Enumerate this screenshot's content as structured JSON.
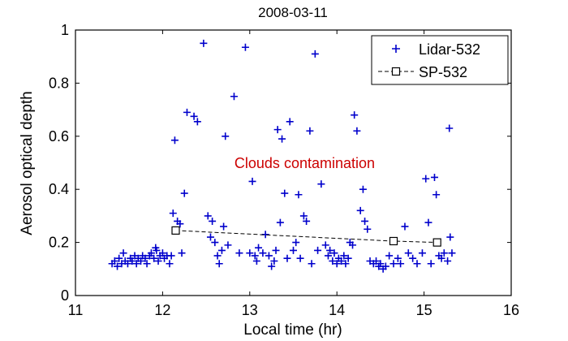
{
  "chart_data": {
    "type": "scatter",
    "title": "2008-03-11",
    "xlabel": "Local time (hr)",
    "ylabel": "Aerosol optical depth",
    "xlim": [
      11,
      16
    ],
    "ylim": [
      0,
      1
    ],
    "xticks": [
      "11",
      "12",
      "13",
      "14",
      "15",
      "16"
    ],
    "yticks": [
      "0",
      "0.2",
      "0.4",
      "0.6",
      "0.8",
      "1"
    ],
    "grid": false,
    "legend_position": "top-right",
    "annotation": {
      "text": "Clouds contamination",
      "x": 13.63,
      "y": 0.48,
      "color": "#cc0000"
    },
    "series": [
      {
        "name": "Lidar-532",
        "marker": "plus",
        "color": "#0000cc",
        "points": [
          [
            11.42,
            0.12
          ],
          [
            11.45,
            0.13
          ],
          [
            11.48,
            0.11
          ],
          [
            11.5,
            0.14
          ],
          [
            11.53,
            0.12
          ],
          [
            11.55,
            0.16
          ],
          [
            11.57,
            0.13
          ],
          [
            11.6,
            0.12
          ],
          [
            11.63,
            0.14
          ],
          [
            11.65,
            0.13
          ],
          [
            11.68,
            0.15
          ],
          [
            11.7,
            0.12
          ],
          [
            11.72,
            0.14
          ],
          [
            11.75,
            0.13
          ],
          [
            11.77,
            0.15
          ],
          [
            11.8,
            0.14
          ],
          [
            11.82,
            0.12
          ],
          [
            11.85,
            0.15
          ],
          [
            11.87,
            0.16
          ],
          [
            11.9,
            0.14
          ],
          [
            11.92,
            0.18
          ],
          [
            11.93,
            0.17
          ],
          [
            11.95,
            0.13
          ],
          [
            11.97,
            0.15
          ],
          [
            12.0,
            0.16
          ],
          [
            12.02,
            0.14
          ],
          [
            12.05,
            0.15
          ],
          [
            12.08,
            0.12
          ],
          [
            12.1,
            0.15
          ],
          [
            12.12,
            0.31
          ],
          [
            12.14,
            0.585
          ],
          [
            12.17,
            0.28
          ],
          [
            12.2,
            0.27
          ],
          [
            12.22,
            0.16
          ],
          [
            12.25,
            0.385
          ],
          [
            12.28,
            0.69
          ],
          [
            12.36,
            0.675
          ],
          [
            12.4,
            0.655
          ],
          [
            12.47,
            0.95
          ],
          [
            12.52,
            0.3
          ],
          [
            12.55,
            0.22
          ],
          [
            12.57,
            0.28
          ],
          [
            12.6,
            0.2
          ],
          [
            12.63,
            0.15
          ],
          [
            12.65,
            0.12
          ],
          [
            12.68,
            0.17
          ],
          [
            12.7,
            0.26
          ],
          [
            12.72,
            0.6
          ],
          [
            12.75,
            0.19
          ],
          [
            12.82,
            0.75
          ],
          [
            12.88,
            0.16
          ],
          [
            12.95,
            0.935
          ],
          [
            13.0,
            0.16
          ],
          [
            13.03,
            0.43
          ],
          [
            13.06,
            0.15
          ],
          [
            13.08,
            0.13
          ],
          [
            13.1,
            0.18
          ],
          [
            13.15,
            0.16
          ],
          [
            13.18,
            0.23
          ],
          [
            13.22,
            0.15
          ],
          [
            13.25,
            0.11
          ],
          [
            13.28,
            0.13
          ],
          [
            13.3,
            0.17
          ],
          [
            13.32,
            0.625
          ],
          [
            13.35,
            0.275
          ],
          [
            13.37,
            0.59
          ],
          [
            13.4,
            0.385
          ],
          [
            13.43,
            0.14
          ],
          [
            13.46,
            0.655
          ],
          [
            13.5,
            0.17
          ],
          [
            13.53,
            0.2
          ],
          [
            13.56,
            0.38
          ],
          [
            13.58,
            0.14
          ],
          [
            13.62,
            0.3
          ],
          [
            13.65,
            0.28
          ],
          [
            13.69,
            0.62
          ],
          [
            13.71,
            0.12
          ],
          [
            13.75,
            0.91
          ],
          [
            13.78,
            0.17
          ],
          [
            13.82,
            0.42
          ],
          [
            13.87,
            0.19
          ],
          [
            13.9,
            0.15
          ],
          [
            13.92,
            0.17
          ],
          [
            13.95,
            0.13
          ],
          [
            13.97,
            0.16
          ],
          [
            14.0,
            0.12
          ],
          [
            14.02,
            0.14
          ],
          [
            14.05,
            0.13
          ],
          [
            14.08,
            0.15
          ],
          [
            14.1,
            0.12
          ],
          [
            14.13,
            0.14
          ],
          [
            14.15,
            0.2
          ],
          [
            14.18,
            0.19
          ],
          [
            14.2,
            0.68
          ],
          [
            14.23,
            0.62
          ],
          [
            14.27,
            0.32
          ],
          [
            14.3,
            0.4
          ],
          [
            14.32,
            0.28
          ],
          [
            14.35,
            0.25
          ],
          [
            14.38,
            0.13
          ],
          [
            14.42,
            0.12
          ],
          [
            14.45,
            0.13
          ],
          [
            14.48,
            0.11
          ],
          [
            14.5,
            0.12
          ],
          [
            14.53,
            0.1
          ],
          [
            14.56,
            0.11
          ],
          [
            14.6,
            0.15
          ],
          [
            14.65,
            0.12
          ],
          [
            14.7,
            0.14
          ],
          [
            14.73,
            0.12
          ],
          [
            14.78,
            0.26
          ],
          [
            14.82,
            0.16
          ],
          [
            14.87,
            0.14
          ],
          [
            14.92,
            0.12
          ],
          [
            14.98,
            0.16
          ],
          [
            15.02,
            0.44
          ],
          [
            15.05,
            0.275
          ],
          [
            15.08,
            0.12
          ],
          [
            15.12,
            0.445
          ],
          [
            15.14,
            0.38
          ],
          [
            15.17,
            0.15
          ],
          [
            15.2,
            0.14
          ],
          [
            15.23,
            0.16
          ],
          [
            15.27,
            0.13
          ],
          [
            15.29,
            0.63
          ],
          [
            15.3,
            0.22
          ],
          [
            15.32,
            0.16
          ]
        ]
      },
      {
        "name": "SP-532",
        "marker": "square",
        "line": "dashed",
        "color": "#000000",
        "points": [
          [
            12.15,
            0.245
          ],
          [
            14.65,
            0.205
          ],
          [
            15.15,
            0.2
          ]
        ]
      }
    ]
  }
}
